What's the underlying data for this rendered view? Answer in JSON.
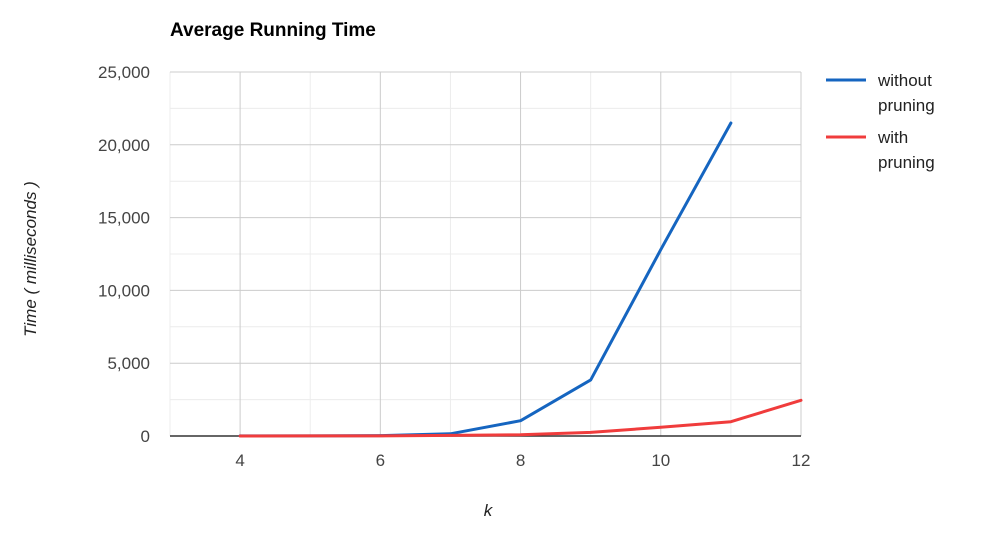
{
  "chart_data": {
    "type": "line",
    "title": "Average Running Time",
    "xlabel": "k",
    "ylabel": "Time ( milliseconds )",
    "xlim": [
      3,
      12
    ],
    "ylim": [
      0,
      25000
    ],
    "x_ticks": [
      4,
      6,
      8,
      10,
      12
    ],
    "x_tick_labels": [
      "4",
      "6",
      "8",
      "10",
      "12"
    ],
    "y_ticks": [
      0,
      5000,
      10000,
      15000,
      20000,
      25000
    ],
    "y_tick_labels": [
      "0",
      "5,000",
      "10,000",
      "15,000",
      "20,000",
      "25,000"
    ],
    "grid": true,
    "legend_position": "right",
    "series": [
      {
        "name": "without pruning",
        "name_lines": [
          "without",
          "pruning"
        ],
        "color": "#1565c0",
        "x": [
          4,
          5,
          6,
          7,
          8,
          9,
          10,
          11
        ],
        "y": [
          5,
          10,
          30,
          150,
          1050,
          3850,
          12800,
          21500
        ]
      },
      {
        "name": "with pruning",
        "name_lines": [
          "with",
          "pruning"
        ],
        "color": "#f03c3c",
        "x": [
          4,
          5,
          6,
          7,
          8,
          9,
          10,
          11,
          12
        ],
        "y": [
          2,
          4,
          10,
          40,
          90,
          250,
          600,
          980,
          2450
        ]
      }
    ]
  }
}
